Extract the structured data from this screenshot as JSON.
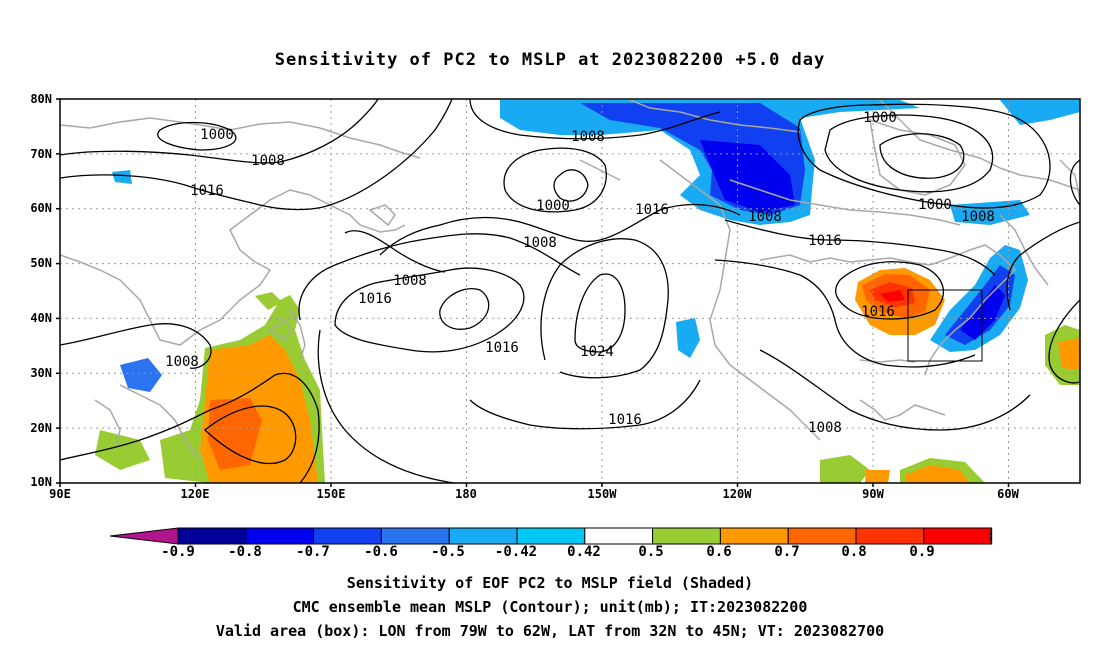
{
  "title": "Sensitivity of PC2 to MSLP at 2023082200 +5.0 day",
  "lat_labels": [
    "80N",
    "70N",
    "60N",
    "50N",
    "40N",
    "30N",
    "20N",
    "10N"
  ],
  "lon_labels": [
    "90E",
    "120E",
    "150E",
    "180",
    "150W",
    "120W",
    "90W",
    "60W"
  ],
  "contour_labels": [
    "1000",
    "1008",
    "1016",
    "1000",
    "1008",
    "1008",
    "1016",
    "1016",
    "1024",
    "1016",
    "1016",
    "1008",
    "1000",
    "1000",
    "1008",
    "1008",
    "1016",
    "1016",
    "1008",
    "1008"
  ],
  "colorbar": {
    "labels": [
      "-0.9",
      "-0.8",
      "-0.7",
      "-0.6",
      "-0.5",
      "-0.42",
      "0.42",
      "0.5",
      "0.6",
      "0.7",
      "0.8",
      "0.9"
    ],
    "colors": [
      "#b0158c",
      "#000099",
      "#0000ee",
      "#1040f0",
      "#2a74f0",
      "#18aaf2",
      "#00c8f4",
      "#ffffff",
      "#99cc33",
      "#ff9900",
      "#ff6600",
      "#ff3300",
      "#ff0000",
      "#f59fc9"
    ]
  },
  "captions": [
    "Sensitivity of EOF PC2 to MSLP field (Shaded)",
    "CMC ensemble mean MSLP (Contour); unit(mb); IT:2023082200",
    "Valid area (box): LON from 79W to 62W, LAT from 32N to 45N; VT: 2023082700"
  ]
}
